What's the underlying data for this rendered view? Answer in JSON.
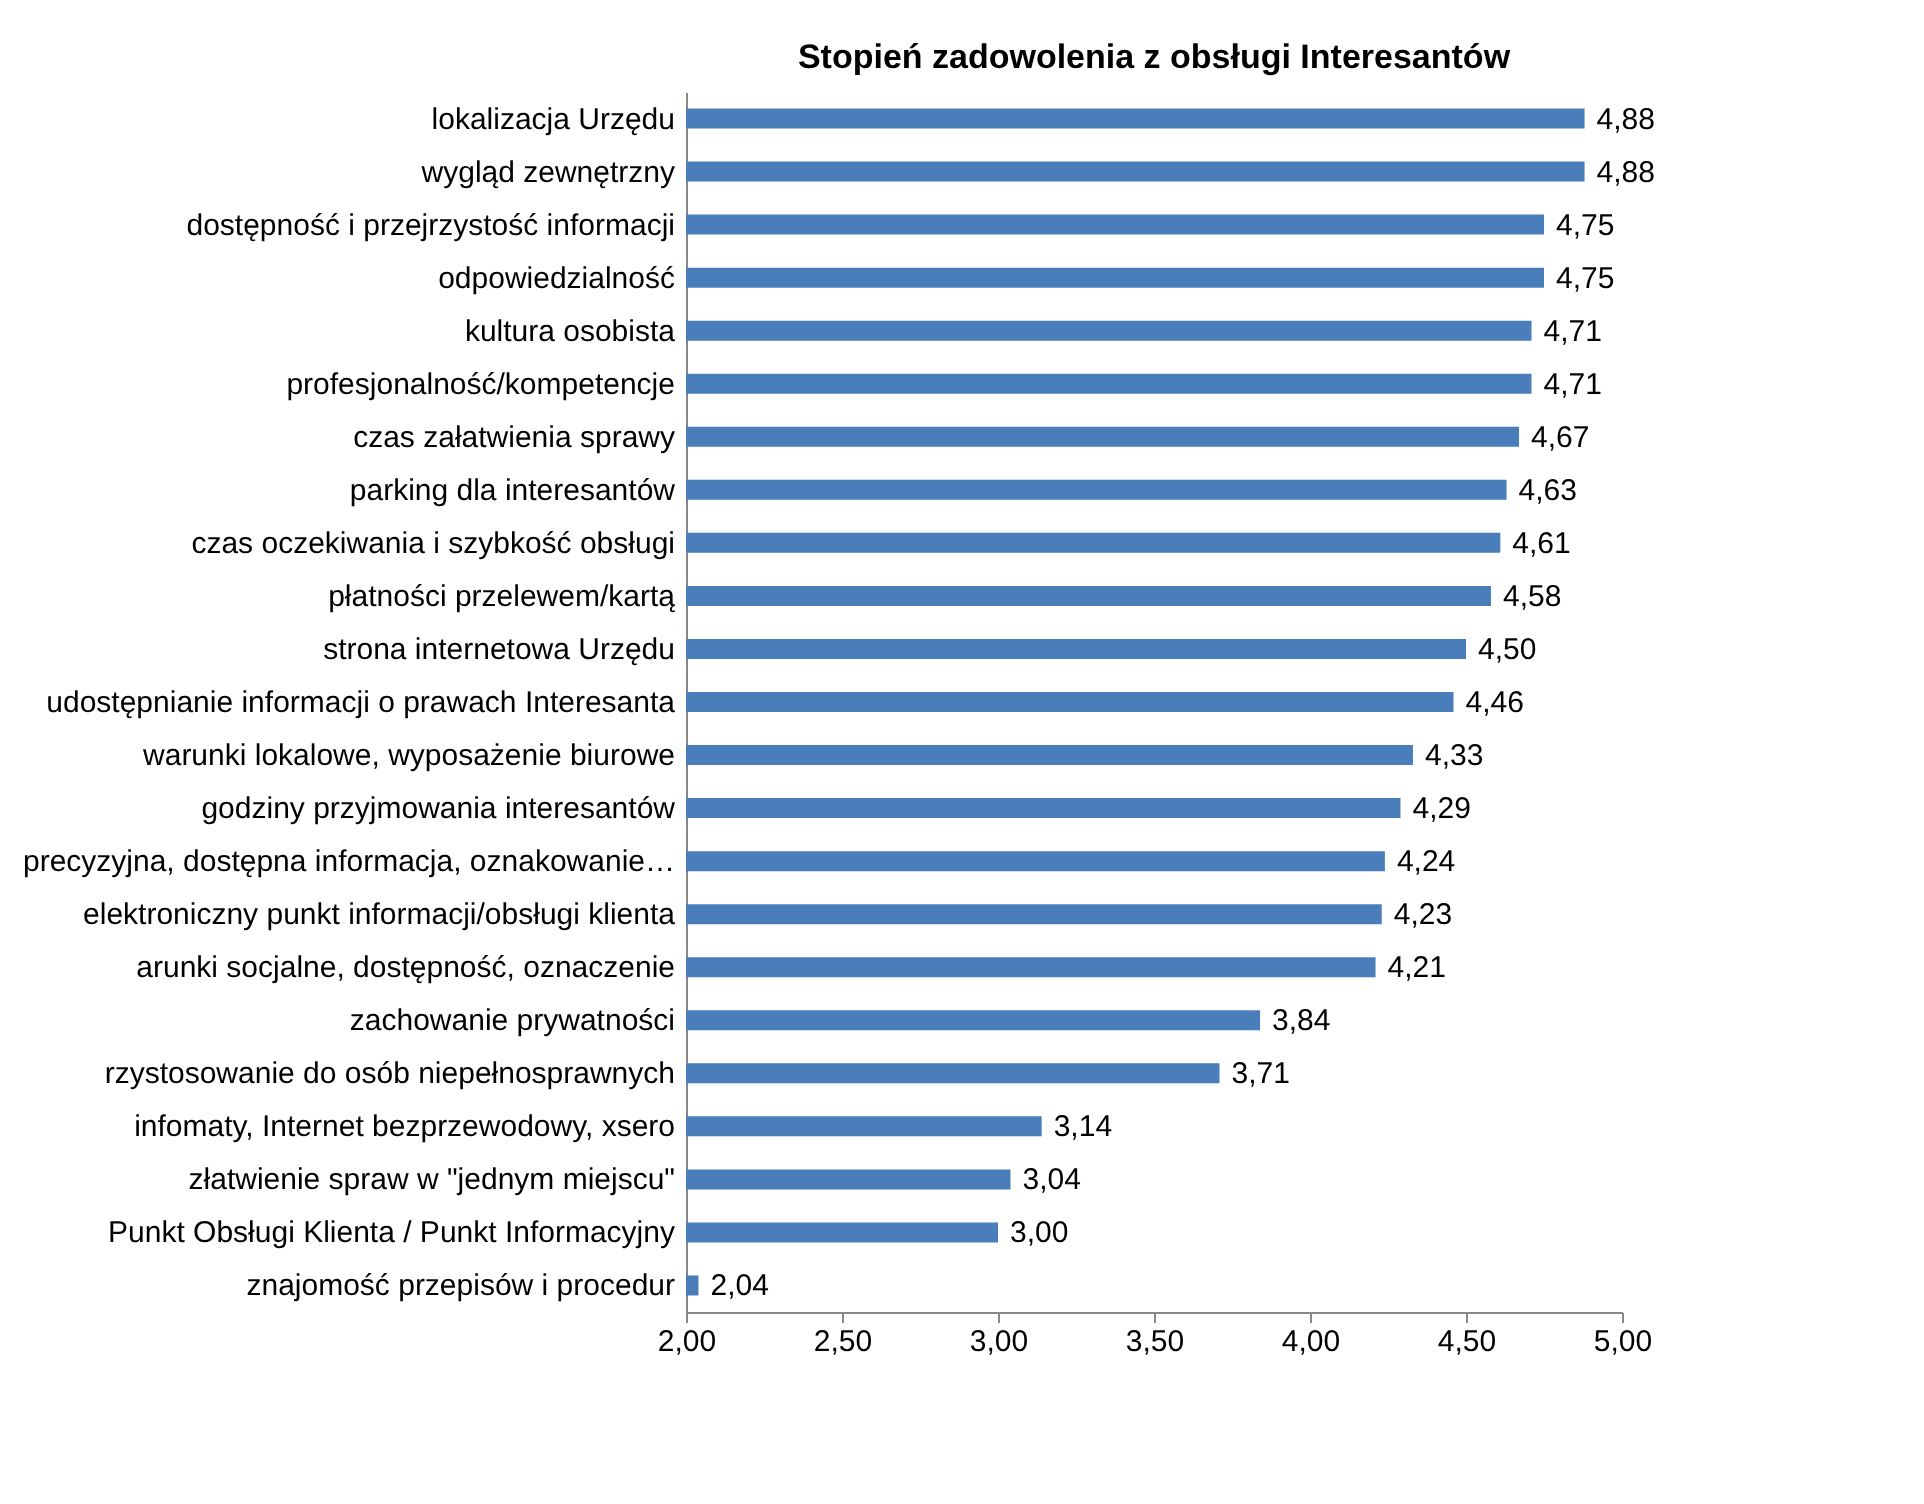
{
  "chart_data": {
    "type": "bar",
    "orientation": "horizontal",
    "title": "Stopień zadowolenia z obsługi Interesantów",
    "categories": [
      "lokalizacja Urzędu",
      "wygląd zewnętrzny",
      "dostępność i przejrzystość informacji",
      "odpowiedzialność",
      "kultura osobista",
      "profesjonalność/kompetencje",
      "czas załatwienia sprawy",
      "parking dla interesantów",
      "czas oczekiwania i szybkość obsługi",
      "płatności przelewem/kartą",
      "strona internetowa Urzędu",
      "udostępnianie informacji o prawach Interesanta",
      "warunki lokalowe, wyposażenie biurowe",
      "godziny przyjmowania interesantów",
      "precyzyjna, dostępna informacja, oznakowanie…",
      "elektroniczny punkt informacji/obsługi klienta",
      "arunki socjalne, dostępność, oznaczenie",
      "zachowanie prywatności",
      "rzystosowanie do osób niepełnosprawnych",
      "infomaty, Internet bezprzewodowy, xsero",
      "złatwienie spraw w \"jednym miejscu\"",
      "Punkt Obsługi Klienta / Punkt Informacyjny",
      "znajomość przepisów i procedur"
    ],
    "values": [
      4.88,
      4.88,
      4.75,
      4.75,
      4.71,
      4.71,
      4.67,
      4.63,
      4.61,
      4.58,
      4.5,
      4.46,
      4.33,
      4.29,
      4.24,
      4.23,
      4.21,
      3.84,
      3.71,
      3.14,
      3.04,
      3.0,
      2.04
    ],
    "value_labels": [
      "4,88",
      "4,88",
      "4,75",
      "4,75",
      "4,71",
      "4,71",
      "4,67",
      "4,63",
      "4,61",
      "4,58",
      "4,50",
      "4,46",
      "4,33",
      "4,29",
      "4,24",
      "4,23",
      "4,21",
      "3,84",
      "3,71",
      "3,14",
      "3,04",
      "3,00",
      "2,04"
    ],
    "color": "#4a7ebb",
    "xlim": [
      2,
      5
    ],
    "xticks": [
      {
        "value": 2,
        "label": "2,00"
      },
      {
        "value": 2.5,
        "label": "2,50"
      },
      {
        "value": 3,
        "label": "3,00"
      },
      {
        "value": 3.5,
        "label": "3,50"
      },
      {
        "value": 4,
        "label": "4,00"
      },
      {
        "value": 4.5,
        "label": "4,50"
      },
      {
        "value": 5,
        "label": "5,00"
      }
    ],
    "grid": false
  }
}
